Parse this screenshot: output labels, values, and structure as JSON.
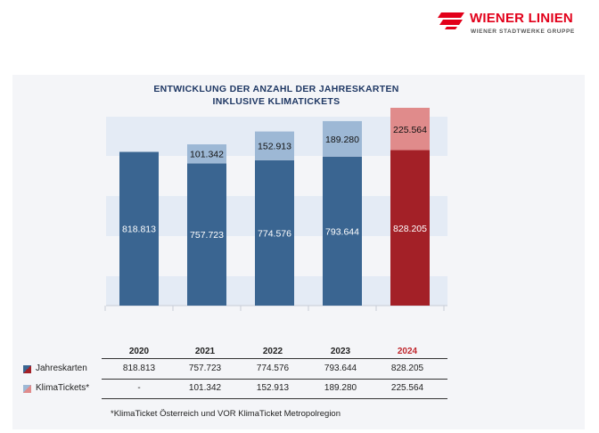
{
  "logo": {
    "brand": "WIENER LINIEN",
    "subtitle": "WIENER STADTWERKE GRUPPE"
  },
  "title_line1": "ENTWICKLUNG DER ANZAHL DER JAHRESKARTEN",
  "title_line2": "INKLUSIVE KLIMATICKETS",
  "colors": {
    "jahreskarten": "#3a6591",
    "klimatickets": "#9db8d5",
    "jahreskarten_highlight": "#a32027",
    "klimatickets_highlight": "#e08b8b",
    "band": "#e4ebf5",
    "header_highlight": "#c0282e"
  },
  "chart_data": {
    "type": "bar",
    "stacked": true,
    "title": "ENTWICKLUNG DER ANZAHL DER JAHRESKARTEN INKLUSIVE KLIMATICKETS",
    "categories": [
      "2020",
      "2021",
      "2022",
      "2023",
      "2024"
    ],
    "highlight_category": "2024",
    "series": [
      {
        "name": "Jahreskarten",
        "values": [
          818813,
          757723,
          774576,
          793644,
          828205
        ],
        "labels": [
          "818.813",
          "757.723",
          "774.576",
          "793.644",
          "828.205"
        ]
      },
      {
        "name": "KlimaTickets*",
        "values": [
          0,
          101342,
          152913,
          189280,
          225564
        ],
        "labels": [
          "-",
          "101.342",
          "152.913",
          "189.280",
          "225.564"
        ]
      }
    ],
    "ylim": [
      0,
      1053769
    ],
    "legend": "table-below",
    "grid": false
  },
  "table": {
    "years": [
      "2020",
      "2021",
      "2022",
      "2023",
      "2024"
    ],
    "rows": [
      {
        "label": "Jahreskarten",
        "values": [
          "818.813",
          "757.723",
          "774.576",
          "793.644",
          "828.205"
        ]
      },
      {
        "label": "KlimaTickets*",
        "values": [
          "-",
          "101.342",
          "152.913",
          "189.280",
          "225.564"
        ]
      }
    ]
  },
  "footnote": "*KlimaTicket Österreich und VOR KlimaTicket Metropolregion"
}
